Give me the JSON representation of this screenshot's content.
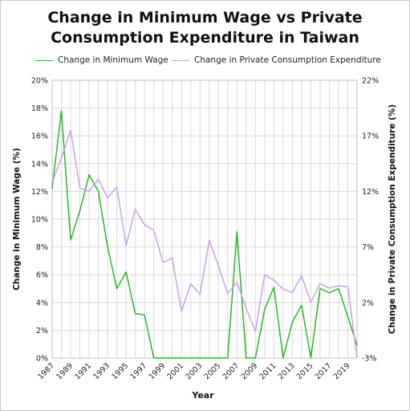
{
  "chart_data": {
    "type": "line",
    "title_line1": "Change in Minimum Wage vs Private",
    "title_line2": "Consumption Expenditure in Taiwan",
    "xlabel": "Year",
    "ylabel_left": "Change in Minimum Wage (%)",
    "ylabel_right": "Change in Private Consumption Expenditure (%)",
    "x_tick_labels": [
      "1987",
      "1989",
      "1991",
      "1993",
      "1995",
      "1997",
      "1999",
      "2001",
      "2003",
      "2005",
      "2007",
      "2009",
      "2011",
      "2013",
      "2015",
      "2017",
      "2019"
    ],
    "y_left_ticks": [
      "0%",
      "2%",
      "4%",
      "6%",
      "8%",
      "10%",
      "12%",
      "14%",
      "16%",
      "18%",
      "20%"
    ],
    "y_right_ticks": [
      "-3%",
      "2%",
      "7%",
      "12%",
      "17%",
      "22%"
    ],
    "ylim_left": [
      0,
      20
    ],
    "ylim_right": [
      -3,
      22
    ],
    "x": [
      1987,
      1988,
      1989,
      1990,
      1991,
      1992,
      1993,
      1994,
      1995,
      1996,
      1997,
      1998,
      1999,
      2000,
      2001,
      2002,
      2003,
      2004,
      2005,
      2006,
      2007,
      2008,
      2009,
      2010,
      2011,
      2012,
      2013,
      2014,
      2015,
      2016,
      2017,
      2018,
      2019,
      2020
    ],
    "series": [
      {
        "name": "Change in Minimum Wage",
        "color": "#22bb22",
        "axis": "left",
        "values": [
          12.2,
          17.8,
          8.5,
          10.6,
          13.2,
          12.0,
          8.0,
          5.0,
          6.2,
          3.2,
          3.1,
          0.0,
          0.0,
          0.0,
          0.0,
          0.0,
          0.0,
          0.0,
          0.0,
          0.0,
          9.1,
          0.0,
          0.0,
          3.5,
          5.1,
          0.0,
          2.6,
          3.8,
          0.0,
          5.0,
          4.7,
          5.0,
          3.0,
          0.9
        ]
      },
      {
        "name": "Change in Private Consumption Expenditure",
        "color": "#c9a0f0",
        "axis": "right",
        "values": [
          12.8,
          15.0,
          17.5,
          12.3,
          12.0,
          13.1,
          11.4,
          12.4,
          7.1,
          10.4,
          9.0,
          8.5,
          5.6,
          6.0,
          1.2,
          3.7,
          2.7,
          7.6,
          5.3,
          2.8,
          3.8,
          1.5,
          -0.6,
          4.5,
          4.0,
          3.2,
          2.9,
          4.4,
          2.0,
          3.7,
          3.3,
          3.5,
          3.4,
          -3.0
        ]
      }
    ],
    "grid": true,
    "legend_position": "top"
  }
}
